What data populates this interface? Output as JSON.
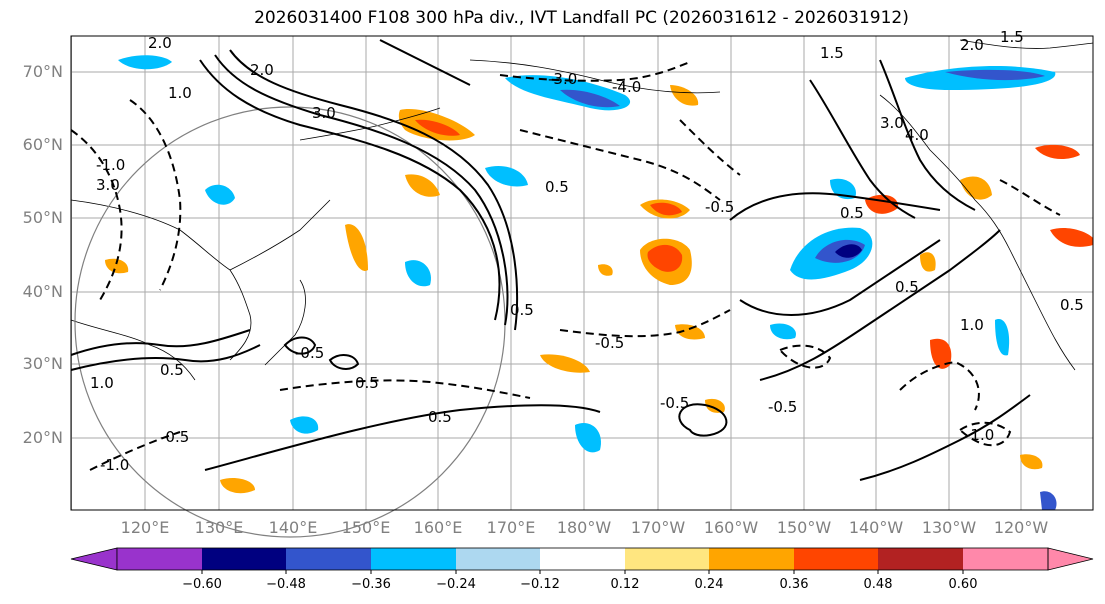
{
  "title": "2026031400 F108 300 hPa div., IVT Landfall PC (2026031612 - 2026031912)",
  "lat_labels": [
    "70°N",
    "60°N",
    "50°N",
    "40°N",
    "30°N",
    "20°N"
  ],
  "lon_labels": [
    "120°E",
    "130°E",
    "140°E",
    "150°E",
    "160°E",
    "170°E",
    "180°W",
    "170°W",
    "160°W",
    "150°W",
    "140°W",
    "130°W",
    "120°W"
  ],
  "colorbar": {
    "ticks": [
      "−0.60",
      "−0.48",
      "−0.36",
      "−0.24",
      "−0.12",
      "0.12",
      "0.24",
      "0.36",
      "0.48",
      "0.60"
    ],
    "colors": [
      "#9933cc",
      "#000080",
      "#3355cc",
      "#00bfff",
      "#add8f0",
      "#ffffff",
      "#ffe680",
      "#ffa500",
      "#ff4500",
      "#b22222",
      "#ff88aa"
    ]
  },
  "contour_labels": [
    "2.0",
    "3.0",
    "1.0",
    "1.5",
    "2.0",
    "3.0",
    "-3.0",
    "-4.0",
    "-1.0",
    "0.5",
    "2.0",
    "3.0",
    "4.0",
    "-0.5",
    "0.5",
    "-0.5",
    "1.0",
    "-0.5",
    "0.5",
    "-0.5",
    "-1.0",
    "-0.5",
    "0.5",
    "1.0",
    "1.5",
    "-0.5",
    "0.5",
    "0.5",
    "-1.0",
    "0.5",
    "0.5"
  ],
  "map_features": [
    "coastlines",
    "grid",
    "great-circle-ring"
  ]
}
